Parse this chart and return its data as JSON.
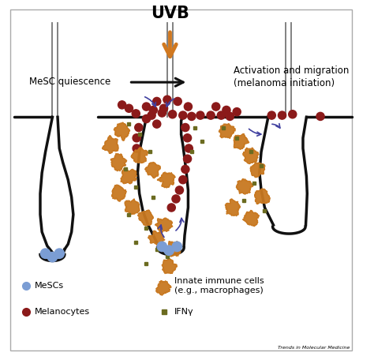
{
  "bg_color": "#ffffff",
  "fig_width": 4.74,
  "fig_height": 4.51,
  "title_uvb": "UVB",
  "label_mesc_quiescence": "MeSC quiescence",
  "label_activation": "Activation and migration\n(melanoma initiation)",
  "label_mescs": "MeSCs",
  "label_melanocytes": "Melanocytes",
  "label_innate": "Innate immune cells\n(e.g., macrophages)",
  "label_ifng": "IFNγ",
  "label_watermark": "Trends in Molecular Medicine",
  "color_melanocyte": "#8B1A1A",
  "color_mesc": "#7B9DD4",
  "color_macrophage": "#C87820",
  "color_ifng": "#6B6B20",
  "color_skin_line": "#111111",
  "color_hair": "#777777",
  "color_uvb_arrow": "#D07820",
  "color_black_arrow": "#111111",
  "color_purple_arrow": "#4040A0"
}
